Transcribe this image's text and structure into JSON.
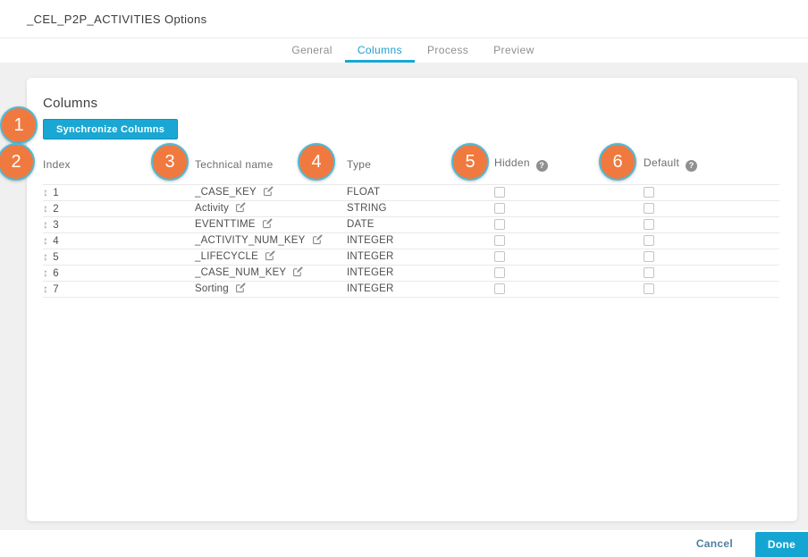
{
  "window": {
    "title": "_CEL_P2P_ACTIVITIES Options"
  },
  "tabs": [
    {
      "label": "General",
      "active": false
    },
    {
      "label": "Columns",
      "active": true
    },
    {
      "label": "Process",
      "active": false
    },
    {
      "label": "Preview",
      "active": false
    }
  ],
  "panel": {
    "heading": "Columns",
    "synchronize_button": "Synchronize Columns"
  },
  "table": {
    "headers": {
      "index": "Index",
      "technical_name": "Technical name",
      "type": "Type",
      "hidden": "Hidden",
      "default": "Default"
    },
    "rows": [
      {
        "index": "1",
        "name": "_CASE_KEY",
        "type": "FLOAT",
        "hidden": false,
        "default": false
      },
      {
        "index": "2",
        "name": "Activity",
        "type": "STRING",
        "hidden": false,
        "default": false
      },
      {
        "index": "3",
        "name": "EVENTTIME",
        "type": "DATE",
        "hidden": false,
        "default": false
      },
      {
        "index": "4",
        "name": "_ACTIVITY_NUM_KEY",
        "type": "INTEGER",
        "hidden": false,
        "default": false
      },
      {
        "index": "5",
        "name": "_LIFECYCLE",
        "type": "INTEGER",
        "hidden": false,
        "default": false
      },
      {
        "index": "6",
        "name": "_CASE_NUM_KEY",
        "type": "INTEGER",
        "hidden": false,
        "default": false
      },
      {
        "index": "7",
        "name": "Sorting",
        "type": "INTEGER",
        "hidden": false,
        "default": false
      }
    ]
  },
  "icons": {
    "help": "?",
    "drag": "↕"
  },
  "callouts": [
    "1",
    "2",
    "3",
    "4",
    "5",
    "6"
  ],
  "footer": {
    "cancel": "Cancel",
    "done": "Done"
  },
  "colors": {
    "accent": "#1aa7d3",
    "active_tab": "#1b9fce",
    "callout_fill": "#f0793f",
    "callout_border": "#4dbad7",
    "background": "#f0f0f0",
    "cancel_link": "#4e7f9e"
  }
}
